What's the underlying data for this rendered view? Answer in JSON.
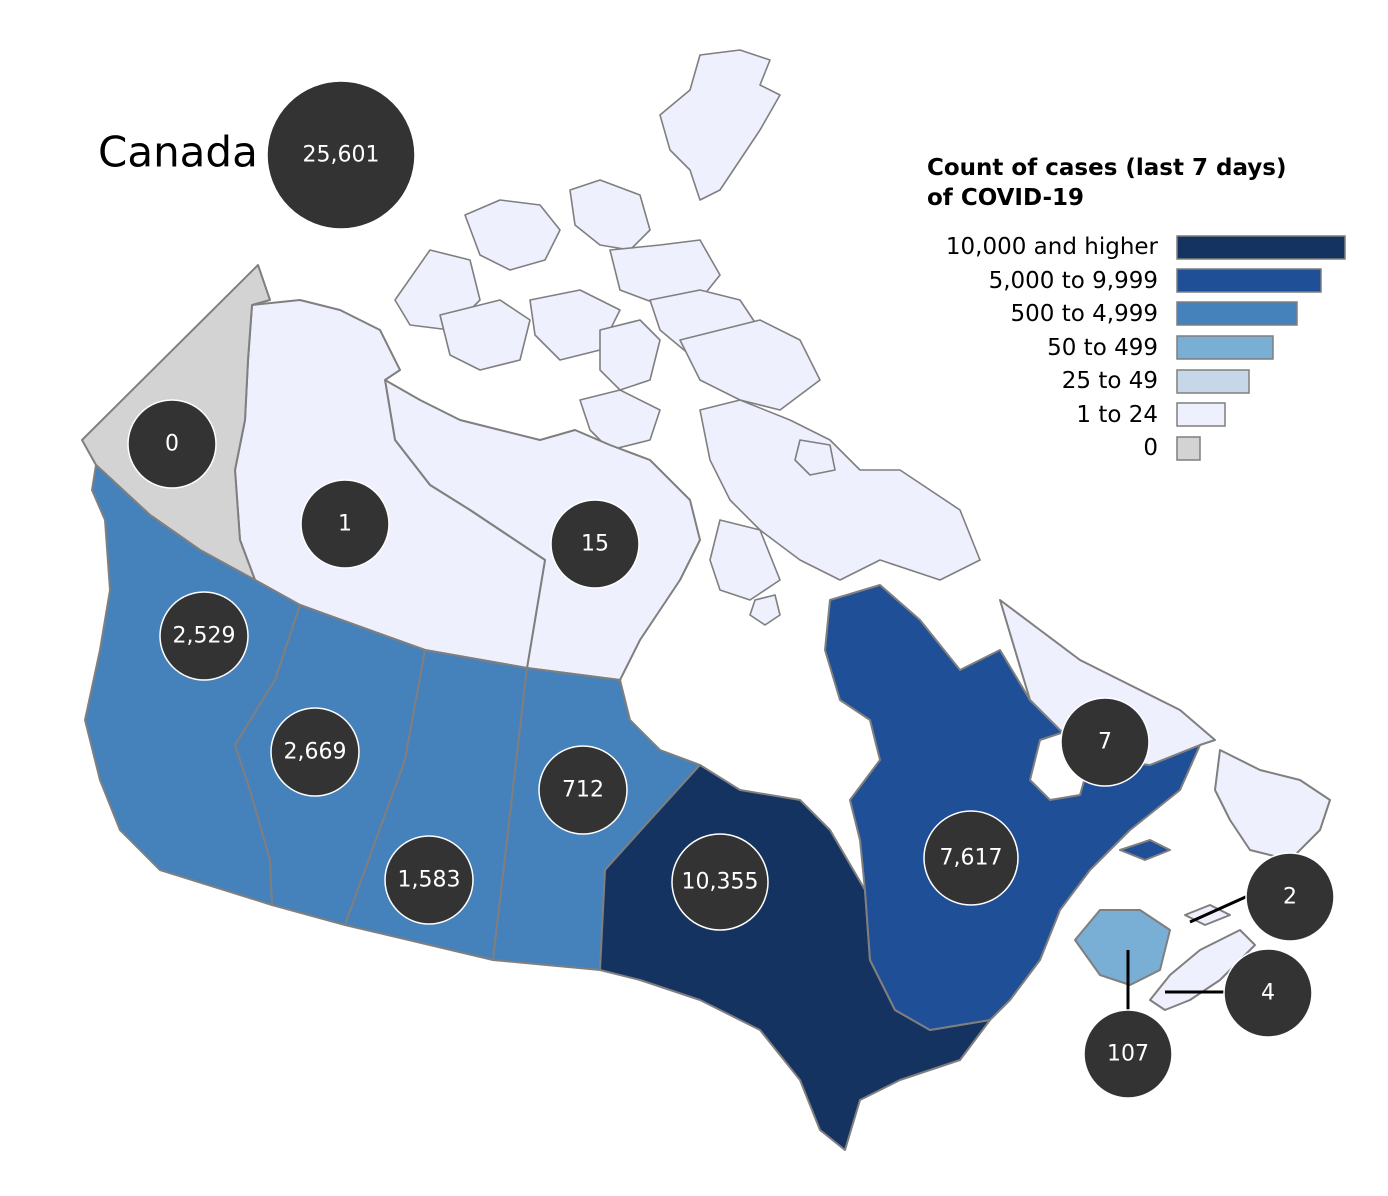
{
  "map": {
    "colors": {
      "10000_plus": "#153361",
      "5000_9999": "#1f4f97",
      "500_4999": "#4582bb",
      "50_499": "#79aed5",
      "25_49": "#c6d8e8",
      "1_24": "#eef0fd",
      "0": "#d3d3d3",
      "bubble": "#333333"
    },
    "country": {
      "label": "Canada",
      "count": "25,601"
    },
    "regions": [
      {
        "key": "yukon",
        "count": "0",
        "category": "0"
      },
      {
        "key": "northwest-territories",
        "count": "1",
        "category": "1_24"
      },
      {
        "key": "nunavut",
        "count": "15",
        "category": "1_24"
      },
      {
        "key": "british-columbia",
        "count": "2,529",
        "category": "500_4999"
      },
      {
        "key": "alberta",
        "count": "2,669",
        "category": "500_4999"
      },
      {
        "key": "saskatchewan",
        "count": "1,583",
        "category": "500_4999"
      },
      {
        "key": "manitoba",
        "count": "712",
        "category": "500_4999"
      },
      {
        "key": "ontario",
        "count": "10,355",
        "category": "10000_plus"
      },
      {
        "key": "quebec",
        "count": "7,617",
        "category": "5000_9999"
      },
      {
        "key": "newfoundland-and-labrador",
        "count": "7",
        "category": "1_24"
      },
      {
        "key": "prince-edward-island",
        "count": "2",
        "category": "1_24"
      },
      {
        "key": "nova-scotia",
        "count": "4",
        "category": "1_24"
      },
      {
        "key": "new-brunswick",
        "count": "107",
        "category": "50_499"
      }
    ]
  },
  "legend": {
    "title_line1": "Count of cases (last 7 days)",
    "title_line2": "of COVID-19",
    "items": [
      {
        "label": "10,000 and higher",
        "color": "#153361"
      },
      {
        "label": "5,000 to 9,999",
        "color": "#1f4f97"
      },
      {
        "label": "500 to 4,999",
        "color": "#4582bb"
      },
      {
        "label": "50 to 499",
        "color": "#79aed5"
      },
      {
        "label": "25 to 49",
        "color": "#c6d8e8"
      },
      {
        "label": "1 to 24",
        "color": "#eef0fd"
      },
      {
        "label": "0",
        "color": "#d3d3d3"
      }
    ]
  }
}
